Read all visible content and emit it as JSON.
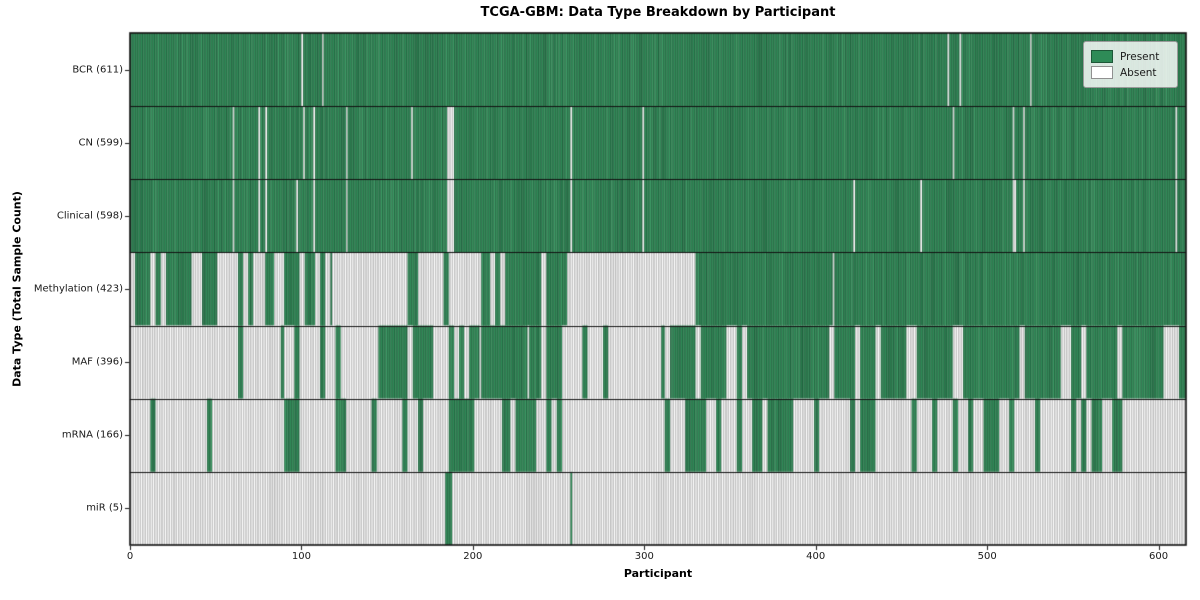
{
  "title": "TCGA-GBM: Data Type Breakdown by Participant",
  "chart_data": {
    "type": "heatmap",
    "title": "TCGA-GBM: Data Type Breakdown by Participant",
    "xlabel": "Participant",
    "ylabel": "Data Type (Total Sample Count)",
    "x_range": [
      0,
      616
    ],
    "x_ticks": [
      0,
      100,
      200,
      300,
      400,
      500,
      600
    ],
    "grid": false,
    "legend": {
      "position": "upper right",
      "entries": [
        {
          "label": "Present",
          "color": "#2e8b57",
          "edge": "#1d5737"
        },
        {
          "label": "Absent",
          "color": "#ffffff",
          "edge": "#909090"
        }
      ]
    },
    "colors": {
      "present_fill": "#2e8b57",
      "present_fill_light": "#3c9b65",
      "present_fill_dark": "#27794c",
      "present_edge": "#1d5133",
      "absent_fill": "#ffffff",
      "absent_fill_dim": "#f0f0f0",
      "absent_edge": "#8f8f8f",
      "row_divider": "#111111",
      "plot_border": "#111111",
      "tick_color": "#1a1a1a"
    },
    "rows": [
      {
        "label": "BCR (611)",
        "name": "BCR",
        "total": 611,
        "base": "present",
        "segments": [],
        "absent_at": [
          100,
          112,
          477,
          484,
          525
        ],
        "present_at": []
      },
      {
        "label": "CN (599)",
        "name": "CN",
        "total": 599,
        "base": "present",
        "segments": [],
        "absent_at": [
          60,
          75,
          79,
          101,
          107,
          126,
          164,
          185,
          186,
          187,
          188,
          257,
          299,
          480,
          515,
          521,
          610
        ],
        "present_at": []
      },
      {
        "label": "Clinical (598)",
        "name": "Clinical",
        "total": 598,
        "base": "present",
        "segments": [],
        "absent_at": [
          60,
          75,
          79,
          97,
          107,
          126,
          185,
          186,
          187,
          188,
          257,
          299,
          422,
          461,
          515,
          516,
          521,
          610
        ],
        "present_at": []
      },
      {
        "label": "Methylation (423)",
        "name": "Methylation",
        "total": 423,
        "base": "segments",
        "segments": [
          {
            "from": 0,
            "to": 8,
            "p": 0.85
          },
          {
            "from": 8,
            "to": 57,
            "p": 0.68
          },
          {
            "from": 57,
            "to": 79,
            "p": 0.1
          },
          {
            "from": 79,
            "to": 91,
            "p": 0.5
          },
          {
            "from": 91,
            "to": 118,
            "p": 0.75
          },
          {
            "from": 118,
            "to": 142,
            "p": 0.15
          },
          {
            "from": 142,
            "to": 172,
            "p": 0.5
          },
          {
            "from": 172,
            "to": 205,
            "p": 0.15
          },
          {
            "from": 205,
            "to": 255,
            "p": 0.95
          },
          {
            "from": 255,
            "to": 330,
            "p": 0.05
          },
          {
            "from": 330,
            "to": 616,
            "p": 1.0
          }
        ],
        "absent_at": [
          410
        ],
        "present_at": []
      },
      {
        "label": "MAF (396)",
        "name": "MAF",
        "total": 396,
        "base": "segments",
        "segments": [
          {
            "from": 0,
            "to": 18,
            "p": 0.05
          },
          {
            "from": 18,
            "to": 26,
            "p": 0.35
          },
          {
            "from": 26,
            "to": 88,
            "p": 0.06
          },
          {
            "from": 88,
            "to": 118,
            "p": 0.55
          },
          {
            "from": 118,
            "to": 145,
            "p": 0.4
          },
          {
            "from": 145,
            "to": 205,
            "p": 0.65
          },
          {
            "from": 205,
            "to": 255,
            "p": 0.92
          },
          {
            "from": 255,
            "to": 283,
            "p": 0.07
          },
          {
            "from": 283,
            "to": 310,
            "p": 0.35
          },
          {
            "from": 310,
            "to": 616,
            "p": 0.85
          }
        ],
        "absent_at": [
          232
        ],
        "present_at": []
      },
      {
        "label": "mRNA (166)",
        "name": "mRNA",
        "total": 166,
        "base": "segments",
        "segments": [
          {
            "from": 0,
            "to": 24,
            "p": 0.03
          },
          {
            "from": 24,
            "to": 27,
            "p": 0.6
          },
          {
            "from": 27,
            "to": 90,
            "p": 0.05
          },
          {
            "from": 90,
            "to": 130,
            "p": 0.35
          },
          {
            "from": 130,
            "to": 150,
            "p": 0.2
          },
          {
            "from": 150,
            "to": 185,
            "p": 0.3
          },
          {
            "from": 185,
            "to": 200,
            "p": 0.8
          },
          {
            "from": 200,
            "to": 217,
            "p": 0.4
          },
          {
            "from": 217,
            "to": 240,
            "p": 0.75
          },
          {
            "from": 240,
            "to": 257,
            "p": 0.3
          },
          {
            "from": 257,
            "to": 310,
            "p": 0.05
          },
          {
            "from": 310,
            "to": 590,
            "p": 0.33
          },
          {
            "from": 590,
            "to": 616,
            "p": 0.08
          }
        ],
        "absent_at": [],
        "present_at": []
      },
      {
        "label": "miR (5)",
        "name": "miR",
        "total": 5,
        "base": "absent",
        "segments": [],
        "absent_at": [],
        "present_at": [
          184,
          185,
          186,
          187,
          257
        ]
      }
    ]
  }
}
